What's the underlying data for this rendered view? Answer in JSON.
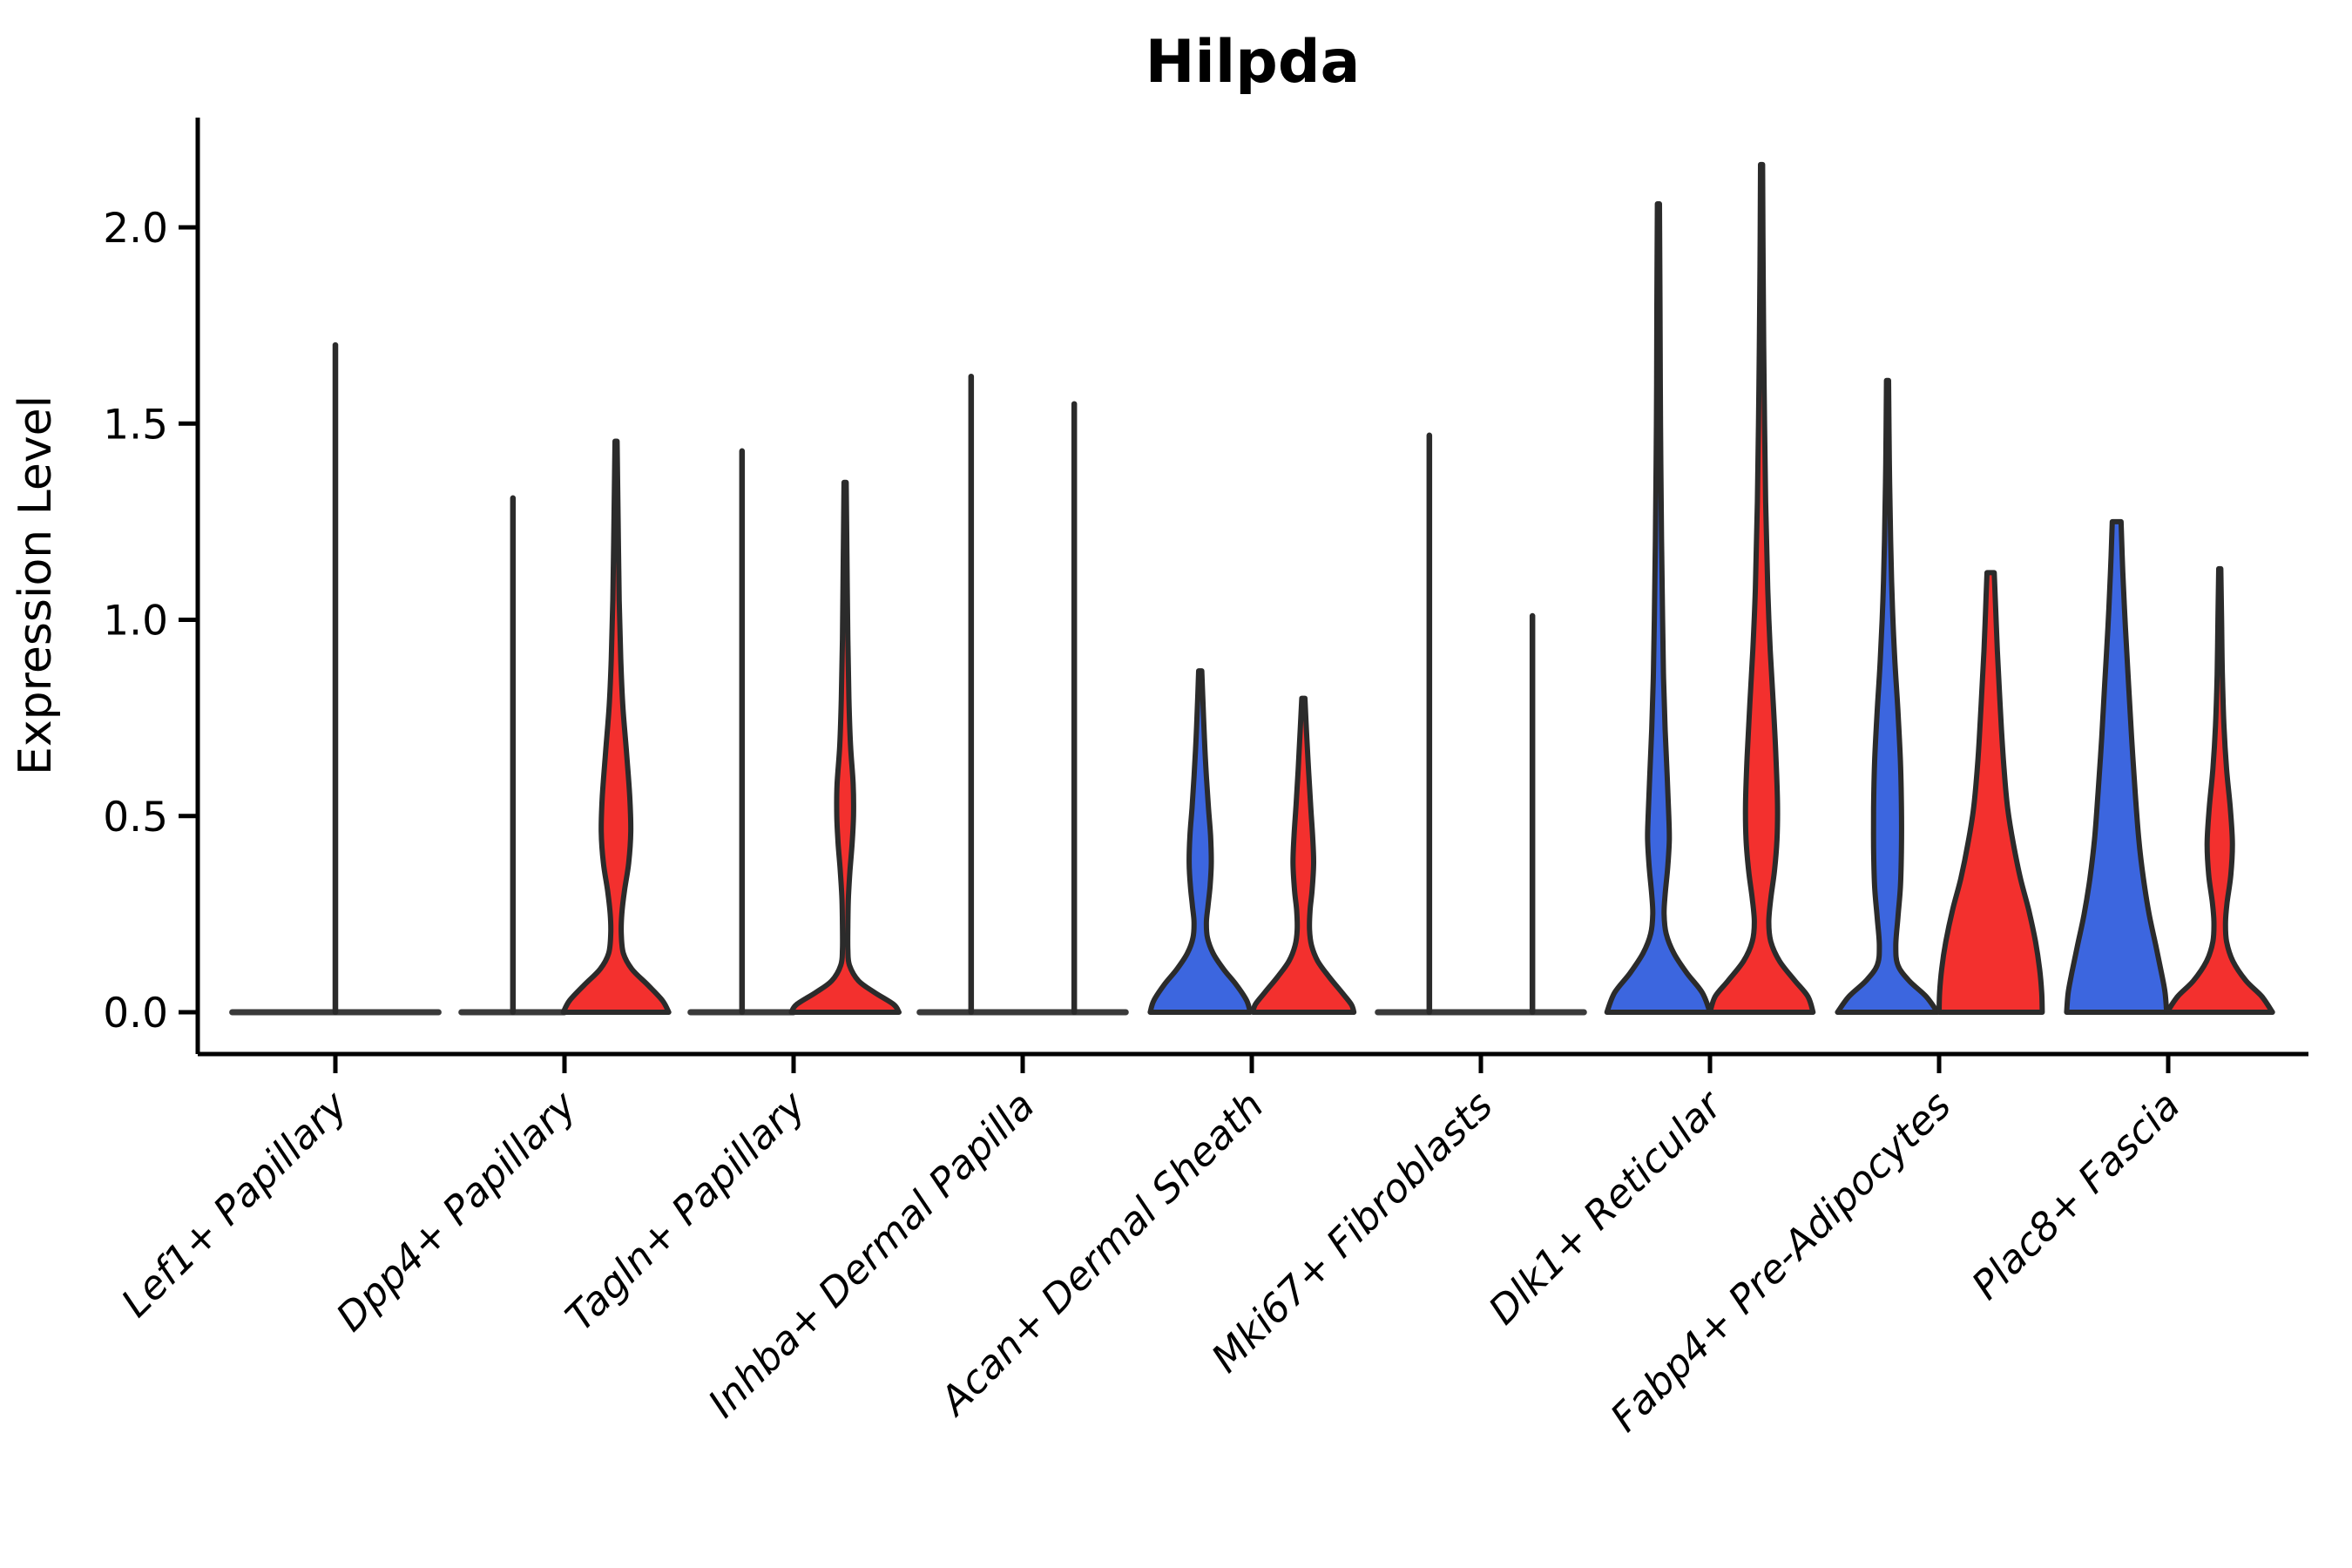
{
  "colors": {
    "blue": "#3C66DF",
    "red": "#F3302E",
    "outline": "#2B2B2B",
    "axis": "#000000",
    "flat_line": "#3A3A3A",
    "background": "#FFFFFF"
  },
  "chart_data": {
    "type": "violin",
    "title": "Hilpda",
    "xlabel": "",
    "ylabel": "Expression Level",
    "ylim": [
      0,
      2.3
    ],
    "yticks": [
      "0.0",
      "0.5",
      "1.0",
      "1.5",
      "2.0"
    ],
    "ytick_values": [
      0.0,
      0.5,
      1.0,
      1.5,
      2.0
    ],
    "grid": false,
    "legend": "none",
    "categories": [
      "Lef1+ Papillary",
      "Dpp4+ Papillary",
      "Tagln+ Papillary",
      "Inhba+ Dermal Papilla",
      "Acan+ Dermal Sheath",
      "Mki67+ Fibroblasts",
      "Dlk1+ Reticular",
      "Fabp4+ Pre-Adipocytes",
      "Plac8+ Fascia"
    ],
    "group_offsets": {
      "left": -0.225,
      "right": 0.225,
      "single": 0
    },
    "violins": [
      {
        "cat": 0,
        "group": "single",
        "color": "none",
        "type": "flat",
        "width": 0.9,
        "max": 1.7
      },
      {
        "cat": 1,
        "group": "left",
        "color": "blue",
        "type": "flat",
        "width": 0.45,
        "max": 1.31
      },
      {
        "cat": 1,
        "group": "right",
        "color": "red",
        "type": "shaped",
        "width": 0.46,
        "max": 1.455,
        "profile": [
          [
            1.455,
            0.02
          ],
          [
            1.25,
            0.04
          ],
          [
            1.05,
            0.06
          ],
          [
            0.9,
            0.09
          ],
          [
            0.78,
            0.13
          ],
          [
            0.66,
            0.2
          ],
          [
            0.55,
            0.26
          ],
          [
            0.46,
            0.28
          ],
          [
            0.38,
            0.24
          ],
          [
            0.31,
            0.16
          ],
          [
            0.25,
            0.11
          ],
          [
            0.2,
            0.1
          ],
          [
            0.15,
            0.14
          ],
          [
            0.11,
            0.3
          ],
          [
            0.07,
            0.6
          ],
          [
            0.03,
            0.88
          ],
          [
            0.0,
            1.0
          ]
        ]
      },
      {
        "cat": 2,
        "group": "left",
        "color": "blue",
        "type": "flat",
        "width": 0.45,
        "max": 1.43
      },
      {
        "cat": 2,
        "group": "right",
        "color": "red",
        "type": "shaped",
        "width": 0.47,
        "max": 1.35,
        "profile": [
          [
            1.35,
            0.02
          ],
          [
            1.15,
            0.035
          ],
          [
            0.95,
            0.05
          ],
          [
            0.8,
            0.07
          ],
          [
            0.68,
            0.1
          ],
          [
            0.58,
            0.15
          ],
          [
            0.5,
            0.155
          ],
          [
            0.43,
            0.13
          ],
          [
            0.36,
            0.09
          ],
          [
            0.29,
            0.06
          ],
          [
            0.22,
            0.05
          ],
          [
            0.16,
            0.05
          ],
          [
            0.12,
            0.08
          ],
          [
            0.08,
            0.25
          ],
          [
            0.05,
            0.55
          ],
          [
            0.02,
            0.9
          ],
          [
            0.0,
            1.0
          ]
        ]
      },
      {
        "cat": 3,
        "group": "left",
        "color": "blue",
        "type": "flat",
        "width": 0.45,
        "max": 1.62
      },
      {
        "cat": 3,
        "group": "right",
        "color": "red",
        "type": "flat",
        "width": 0.45,
        "max": 1.55
      },
      {
        "cat": 4,
        "group": "left",
        "color": "blue",
        "type": "shaped",
        "width": 0.45,
        "max": 0.87,
        "profile": [
          [
            0.87,
            0.03
          ],
          [
            0.8,
            0.05
          ],
          [
            0.7,
            0.08
          ],
          [
            0.6,
            0.12
          ],
          [
            0.52,
            0.16
          ],
          [
            0.45,
            0.2
          ],
          [
            0.38,
            0.215
          ],
          [
            0.32,
            0.19
          ],
          [
            0.27,
            0.15
          ],
          [
            0.23,
            0.12
          ],
          [
            0.19,
            0.14
          ],
          [
            0.15,
            0.25
          ],
          [
            0.11,
            0.45
          ],
          [
            0.07,
            0.7
          ],
          [
            0.03,
            0.9
          ],
          [
            0.0,
            0.97
          ]
        ]
      },
      {
        "cat": 4,
        "group": "right",
        "color": "red",
        "type": "shaped",
        "width": 0.45,
        "max": 0.8,
        "profile": [
          [
            0.8,
            0.03
          ],
          [
            0.72,
            0.06
          ],
          [
            0.62,
            0.1
          ],
          [
            0.53,
            0.14
          ],
          [
            0.45,
            0.18
          ],
          [
            0.38,
            0.2
          ],
          [
            0.31,
            0.17
          ],
          [
            0.26,
            0.13
          ],
          [
            0.21,
            0.12
          ],
          [
            0.17,
            0.16
          ],
          [
            0.13,
            0.28
          ],
          [
            0.09,
            0.5
          ],
          [
            0.05,
            0.75
          ],
          [
            0.02,
            0.93
          ],
          [
            0.0,
            0.98
          ]
        ]
      },
      {
        "cat": 5,
        "group": "left",
        "color": "blue",
        "type": "flat",
        "width": 0.45,
        "max": 1.47
      },
      {
        "cat": 5,
        "group": "right",
        "color": "red",
        "type": "flat",
        "width": 0.45,
        "max": 1.01
      },
      {
        "cat": 6,
        "group": "left",
        "color": "blue",
        "type": "shaped",
        "width": 0.45,
        "max": 2.06,
        "profile": [
          [
            2.06,
            0.02
          ],
          [
            1.8,
            0.03
          ],
          [
            1.5,
            0.04
          ],
          [
            1.2,
            0.06
          ],
          [
            1.0,
            0.08
          ],
          [
            0.85,
            0.1
          ],
          [
            0.72,
            0.13
          ],
          [
            0.6,
            0.17
          ],
          [
            0.5,
            0.2
          ],
          [
            0.44,
            0.21
          ],
          [
            0.37,
            0.18
          ],
          [
            0.3,
            0.13
          ],
          [
            0.25,
            0.11
          ],
          [
            0.2,
            0.15
          ],
          [
            0.15,
            0.3
          ],
          [
            0.1,
            0.55
          ],
          [
            0.05,
            0.85
          ],
          [
            0.0,
            1.0
          ]
        ]
      },
      {
        "cat": 6,
        "group": "right",
        "color": "red",
        "type": "shaped",
        "width": 0.45,
        "max": 2.16,
        "profile": [
          [
            2.16,
            0.02
          ],
          [
            1.9,
            0.03
          ],
          [
            1.6,
            0.05
          ],
          [
            1.3,
            0.08
          ],
          [
            1.08,
            0.12
          ],
          [
            0.92,
            0.17
          ],
          [
            0.78,
            0.23
          ],
          [
            0.65,
            0.28
          ],
          [
            0.53,
            0.31
          ],
          [
            0.44,
            0.3
          ],
          [
            0.36,
            0.25
          ],
          [
            0.29,
            0.18
          ],
          [
            0.23,
            0.14
          ],
          [
            0.18,
            0.18
          ],
          [
            0.13,
            0.35
          ],
          [
            0.08,
            0.65
          ],
          [
            0.04,
            0.9
          ],
          [
            0.0,
            1.0
          ]
        ]
      },
      {
        "cat": 7,
        "group": "left",
        "color": "blue",
        "type": "shaped",
        "width": 0.45,
        "max": 1.61,
        "profile": [
          [
            1.61,
            0.02
          ],
          [
            1.4,
            0.035
          ],
          [
            1.2,
            0.06
          ],
          [
            1.05,
            0.09
          ],
          [
            0.9,
            0.14
          ],
          [
            0.77,
            0.2
          ],
          [
            0.64,
            0.25
          ],
          [
            0.52,
            0.27
          ],
          [
            0.42,
            0.27
          ],
          [
            0.32,
            0.25
          ],
          [
            0.24,
            0.2
          ],
          [
            0.17,
            0.16
          ],
          [
            0.12,
            0.2
          ],
          [
            0.08,
            0.42
          ],
          [
            0.04,
            0.75
          ],
          [
            0.0,
            0.97
          ]
        ]
      },
      {
        "cat": 7,
        "group": "right",
        "color": "red",
        "type": "shaped",
        "width": 0.45,
        "max": 1.12,
        "profile": [
          [
            1.12,
            0.07
          ],
          [
            1.02,
            0.1
          ],
          [
            0.92,
            0.13
          ],
          [
            0.82,
            0.17
          ],
          [
            0.72,
            0.21
          ],
          [
            0.62,
            0.26
          ],
          [
            0.52,
            0.33
          ],
          [
            0.43,
            0.44
          ],
          [
            0.34,
            0.58
          ],
          [
            0.26,
            0.74
          ],
          [
            0.18,
            0.87
          ],
          [
            0.11,
            0.95
          ],
          [
            0.05,
            0.99
          ],
          [
            0.0,
            1.0
          ]
        ]
      },
      {
        "cat": 8,
        "group": "left",
        "color": "blue",
        "type": "shaped",
        "width": 0.45,
        "max": 1.25,
        "profile": [
          [
            1.25,
            0.085
          ],
          [
            1.12,
            0.12
          ],
          [
            0.98,
            0.17
          ],
          [
            0.84,
            0.23
          ],
          [
            0.7,
            0.29
          ],
          [
            0.56,
            0.36
          ],
          [
            0.44,
            0.43
          ],
          [
            0.34,
            0.52
          ],
          [
            0.25,
            0.63
          ],
          [
            0.17,
            0.76
          ],
          [
            0.1,
            0.87
          ],
          [
            0.05,
            0.94
          ],
          [
            0.0,
            0.97
          ]
        ]
      },
      {
        "cat": 8,
        "group": "right",
        "color": "red",
        "type": "shaped",
        "width": 0.46,
        "max": 1.13,
        "profile": [
          [
            1.13,
            0.02
          ],
          [
            1.0,
            0.035
          ],
          [
            0.86,
            0.05
          ],
          [
            0.73,
            0.08
          ],
          [
            0.62,
            0.13
          ],
          [
            0.52,
            0.2
          ],
          [
            0.43,
            0.24
          ],
          [
            0.35,
            0.21
          ],
          [
            0.28,
            0.14
          ],
          [
            0.23,
            0.11
          ],
          [
            0.18,
            0.13
          ],
          [
            0.13,
            0.25
          ],
          [
            0.08,
            0.5
          ],
          [
            0.04,
            0.8
          ],
          [
            0.0,
            1.0
          ]
        ]
      }
    ]
  }
}
